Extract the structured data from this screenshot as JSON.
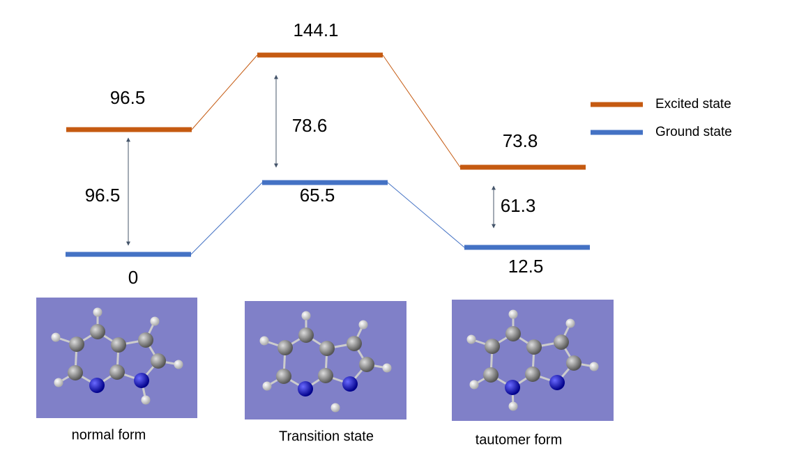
{
  "legend": [
    {
      "label": "Excited state",
      "color": "#c55a11"
    },
    {
      "label": "Ground state",
      "color": "#4472c4"
    }
  ],
  "states": [
    {
      "name": "normal form",
      "excited": 96.5,
      "ground": 0,
      "gap": 96.5
    },
    {
      "name": "Transition state",
      "excited": 144.1,
      "ground": 65.5,
      "gap": 78.6
    },
    {
      "name": "tautomer form",
      "excited": 73.8,
      "ground": 12.5,
      "gap": 61.3
    }
  ]
}
